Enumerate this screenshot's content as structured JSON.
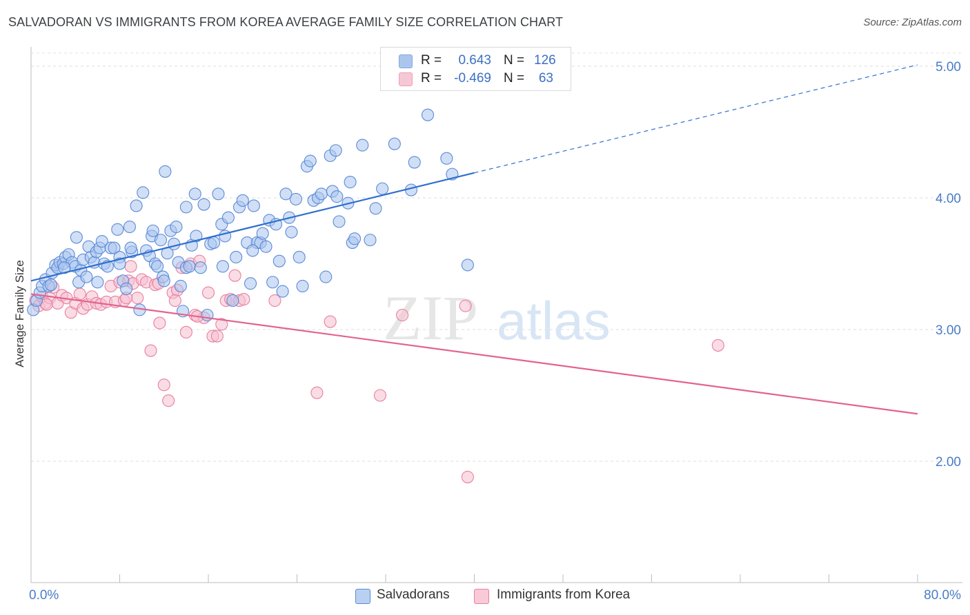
{
  "header": {
    "title": "SALVADORAN VS IMMIGRANTS FROM KOREA AVERAGE FAMILY SIZE CORRELATION CHART",
    "source": "Source: ZipAtlas.com"
  },
  "watermark": {
    "zip": "ZIP",
    "atlas": "atlas"
  },
  "legend": {
    "rows": [
      {
        "r_label": "R =",
        "r_value": "0.643",
        "n_label": "N =",
        "n_value": "126",
        "color": "#8fb4e8",
        "border": "#5b8ad6"
      },
      {
        "r_label": "R =",
        "r_value": "-0.469",
        "n_label": "N =",
        "n_value": "63",
        "color": "#f4b6c8",
        "border": "#e87fa0"
      }
    ]
  },
  "bottom_legend": {
    "items": [
      {
        "label": "Salvadorans",
        "color": "#b9d0f2",
        "border": "#5b8ad6"
      },
      {
        "label": "Immigrants from Korea",
        "color": "#f8cad7",
        "border": "#e87fa0"
      }
    ]
  },
  "chart_data": {
    "type": "scatter",
    "title": "SALVADORAN VS IMMIGRANTS FROM KOREA AVERAGE FAMILY SIZE CORRELATION CHART",
    "xlabel": "",
    "ylabel": "Average Family Size",
    "xlim": [
      0,
      80
    ],
    "ylim": [
      1.0,
      5.1
    ],
    "x_tick_labels": [
      "0.0%",
      "80.0%"
    ],
    "y_ticks": [
      2.0,
      3.0,
      4.0,
      5.0
    ],
    "y_tick_labels": [
      "2.00",
      "3.00",
      "4.00",
      "5.00"
    ],
    "series": [
      {
        "name": "Salvadorans",
        "color": "#5b8ad6",
        "fill": "#a9c5ee",
        "trend": {
          "x0": 0,
          "y0": 3.37,
          "x1": 40,
          "y1": 4.19,
          "dash_x1": 80,
          "dash_y1": 5.01,
          "color": "#2f6fd0"
        },
        "points": [
          [
            0.2,
            3.15
          ],
          [
            0.5,
            3.22
          ],
          [
            0.8,
            3.28
          ],
          [
            1.0,
            3.33
          ],
          [
            1.3,
            3.38
          ],
          [
            1.6,
            3.33
          ],
          [
            1.9,
            3.43
          ],
          [
            2.2,
            3.49
          ],
          [
            2.4,
            3.47
          ],
          [
            2.6,
            3.51
          ],
          [
            2.9,
            3.5
          ],
          [
            3.1,
            3.55
          ],
          [
            3.4,
            3.57
          ],
          [
            3.7,
            3.51
          ],
          [
            4.0,
            3.48
          ],
          [
            4.1,
            3.7
          ],
          [
            4.3,
            3.36
          ],
          [
            4.5,
            3.45
          ],
          [
            4.7,
            3.53
          ],
          [
            5.0,
            3.4
          ],
          [
            5.2,
            3.63
          ],
          [
            5.4,
            3.55
          ],
          [
            5.7,
            3.51
          ],
          [
            5.9,
            3.59
          ],
          [
            6.2,
            3.62
          ],
          [
            6.4,
            3.67
          ],
          [
            6.6,
            3.5
          ],
          [
            6.9,
            3.48
          ],
          [
            7.2,
            3.62
          ],
          [
            7.5,
            3.62
          ],
          [
            7.8,
            3.76
          ],
          [
            8.0,
            3.55
          ],
          [
            8.3,
            3.37
          ],
          [
            8.6,
            3.31
          ],
          [
            8.9,
            3.78
          ],
          [
            9.1,
            3.59
          ],
          [
            9.5,
            3.94
          ],
          [
            9.8,
            3.15
          ],
          [
            10.1,
            4.04
          ],
          [
            10.4,
            3.6
          ],
          [
            10.7,
            3.56
          ],
          [
            10.9,
            3.71
          ],
          [
            11.2,
            3.5
          ],
          [
            11.4,
            3.48
          ],
          [
            11.7,
            3.68
          ],
          [
            11.9,
            3.4
          ],
          [
            12.1,
            4.2
          ],
          [
            12.3,
            3.58
          ],
          [
            12.6,
            3.75
          ],
          [
            12.9,
            3.65
          ],
          [
            13.1,
            3.78
          ],
          [
            13.3,
            3.51
          ],
          [
            13.5,
            3.33
          ],
          [
            13.7,
            3.14
          ],
          [
            14.0,
            3.47
          ],
          [
            14.3,
            3.48
          ],
          [
            14.5,
            3.64
          ],
          [
            14.8,
            4.03
          ],
          [
            14.9,
            3.71
          ],
          [
            15.3,
            3.47
          ],
          [
            15.6,
            3.95
          ],
          [
            15.9,
            3.11
          ],
          [
            16.2,
            3.65
          ],
          [
            16.5,
            3.66
          ],
          [
            16.9,
            4.03
          ],
          [
            17.2,
            3.8
          ],
          [
            17.5,
            3.71
          ],
          [
            17.8,
            3.85
          ],
          [
            17.3,
            3.48
          ],
          [
            18.2,
            3.22
          ],
          [
            18.5,
            3.55
          ],
          [
            18.8,
            3.93
          ],
          [
            19.1,
            3.98
          ],
          [
            19.5,
            3.66
          ],
          [
            19.8,
            3.35
          ],
          [
            20.1,
            3.94
          ],
          [
            20.4,
            3.66
          ],
          [
            20.7,
            3.66
          ],
          [
            20.9,
            3.73
          ],
          [
            21.2,
            3.63
          ],
          [
            21.5,
            3.83
          ],
          [
            21.8,
            3.36
          ],
          [
            22.1,
            3.8
          ],
          [
            22.4,
            3.52
          ],
          [
            22.7,
            3.29
          ],
          [
            23.0,
            4.03
          ],
          [
            23.3,
            3.85
          ],
          [
            23.5,
            3.74
          ],
          [
            23.9,
            3.99
          ],
          [
            24.2,
            3.55
          ],
          [
            24.5,
            3.33
          ],
          [
            24.9,
            4.24
          ],
          [
            25.2,
            4.28
          ],
          [
            25.5,
            3.98
          ],
          [
            25.9,
            4.0
          ],
          [
            26.2,
            4.03
          ],
          [
            26.6,
            3.4
          ],
          [
            27.0,
            4.32
          ],
          [
            27.2,
            4.05
          ],
          [
            27.5,
            4.36
          ],
          [
            27.6,
            4.01
          ],
          [
            27.8,
            3.82
          ],
          [
            28.6,
            3.96
          ],
          [
            28.8,
            4.12
          ],
          [
            29.0,
            3.66
          ],
          [
            29.2,
            3.69
          ],
          [
            29.9,
            4.4
          ],
          [
            30.6,
            3.68
          ],
          [
            31.1,
            3.92
          ],
          [
            31.7,
            4.07
          ],
          [
            32.8,
            4.41
          ],
          [
            34.3,
            4.06
          ],
          [
            34.6,
            4.27
          ],
          [
            35.8,
            4.63
          ],
          [
            37.5,
            4.3
          ],
          [
            38.0,
            4.18
          ],
          [
            39.4,
            3.49
          ],
          [
            11.0,
            3.75
          ],
          [
            9.0,
            3.62
          ],
          [
            6.0,
            3.36
          ],
          [
            3.0,
            3.47
          ],
          [
            1.8,
            3.34
          ],
          [
            14.0,
            3.93
          ],
          [
            20.0,
            3.6
          ],
          [
            8.0,
            3.5
          ],
          [
            12.0,
            3.37
          ]
        ]
      },
      {
        "name": "Immigrants from Korea",
        "color": "#e87fa0",
        "fill": "#f6bfd0",
        "trend": {
          "x0": 0,
          "y0": 3.27,
          "x1": 80,
          "y1": 2.36,
          "color": "#e2638e"
        },
        "points": [
          [
            0.4,
            3.22
          ],
          [
            0.7,
            3.18
          ],
          [
            1.0,
            3.25
          ],
          [
            1.3,
            3.2
          ],
          [
            1.7,
            3.24
          ],
          [
            2.0,
            3.32
          ],
          [
            2.4,
            3.2
          ],
          [
            2.8,
            3.26
          ],
          [
            3.2,
            3.24
          ],
          [
            3.6,
            3.13
          ],
          [
            4.0,
            3.2
          ],
          [
            4.4,
            3.27
          ],
          [
            4.7,
            3.16
          ],
          [
            5.1,
            3.19
          ],
          [
            5.5,
            3.25
          ],
          [
            5.9,
            3.2
          ],
          [
            6.3,
            3.19
          ],
          [
            6.8,
            3.21
          ],
          [
            7.2,
            3.33
          ],
          [
            7.6,
            3.21
          ],
          [
            8.0,
            3.36
          ],
          [
            8.4,
            3.22
          ],
          [
            8.8,
            3.37
          ],
          [
            9.2,
            3.35
          ],
          [
            9.6,
            3.24
          ],
          [
            10.0,
            3.38
          ],
          [
            10.4,
            3.36
          ],
          [
            10.8,
            2.84
          ],
          [
            11.2,
            3.34
          ],
          [
            11.6,
            3.05
          ],
          [
            12.0,
            2.58
          ],
          [
            12.4,
            2.46
          ],
          [
            12.8,
            3.28
          ],
          [
            13.2,
            3.3
          ],
          [
            13.6,
            3.47
          ],
          [
            14.0,
            2.98
          ],
          [
            14.4,
            3.5
          ],
          [
            14.8,
            3.11
          ],
          [
            15.2,
            3.52
          ],
          [
            15.6,
            3.09
          ],
          [
            16.0,
            3.28
          ],
          [
            16.4,
            2.95
          ],
          [
            16.8,
            2.95
          ],
          [
            17.2,
            3.04
          ],
          [
            17.6,
            3.22
          ],
          [
            18.0,
            3.23
          ],
          [
            18.4,
            3.41
          ],
          [
            18.8,
            3.22
          ],
          [
            19.2,
            3.23
          ],
          [
            22.0,
            3.22
          ],
          [
            25.8,
            2.52
          ],
          [
            27.0,
            3.06
          ],
          [
            31.5,
            2.5
          ],
          [
            33.5,
            3.11
          ],
          [
            39.2,
            3.18
          ],
          [
            39.4,
            1.88
          ],
          [
            62.0,
            2.88
          ],
          [
            9.0,
            3.48
          ],
          [
            11.5,
            3.35
          ],
          [
            13.0,
            3.22
          ],
          [
            15.0,
            3.1
          ],
          [
            8.6,
            3.24
          ],
          [
            1.4,
            3.19
          ]
        ]
      }
    ]
  }
}
